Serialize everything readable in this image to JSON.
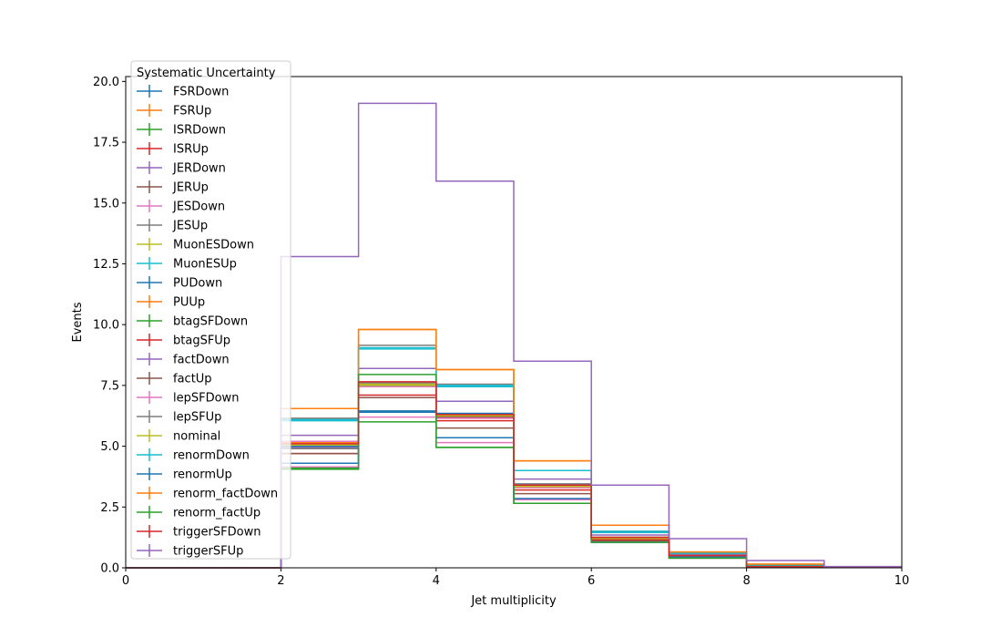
{
  "chart_data": {
    "type": "step",
    "xlabel": "Jet multiplicity",
    "ylabel": "Events",
    "xlim": [
      0,
      10
    ],
    "ylim": [
      0,
      20.2
    ],
    "x_ticks": [
      "0",
      "2",
      "4",
      "6",
      "8",
      "10"
    ],
    "y_ticks": [
      "0.0",
      "2.5",
      "5.0",
      "7.5",
      "10.0",
      "12.5",
      "15.0",
      "17.5",
      "20.0"
    ],
    "grid": false,
    "bin_edges": [
      0,
      1,
      2,
      3,
      4,
      5,
      6,
      7,
      8,
      9,
      10
    ],
    "legend": {
      "title": "Systematic Uncertainty",
      "placement": "upper-left"
    },
    "series": [
      {
        "name": "FSRDown",
        "color": "#1f77b4",
        "values": [
          0,
          0,
          4.3,
          6.45,
          5.35,
          3.45,
          1.2,
          0.45,
          0.05,
          0.02
        ]
      },
      {
        "name": "FSRUp",
        "color": "#ff7f0e",
        "values": [
          0,
          0,
          5.15,
          7.6,
          6.15,
          3.3,
          1.25,
          0.55,
          0.05,
          0.02
        ]
      },
      {
        "name": "ISRDown",
        "color": "#2ca02c",
        "values": [
          0,
          0,
          4.95,
          7.5,
          6.3,
          3.35,
          1.2,
          0.5,
          0.05,
          0.02
        ]
      },
      {
        "name": "ISRUp",
        "color": "#d62728",
        "values": [
          0,
          0,
          5.05,
          7.55,
          6.2,
          3.35,
          1.25,
          0.5,
          0.05,
          0.02
        ]
      },
      {
        "name": "JERDown",
        "color": "#9467bd",
        "values": [
          0,
          0,
          4.95,
          7.6,
          6.25,
          3.4,
          1.25,
          0.5,
          0.05,
          0.02
        ]
      },
      {
        "name": "JERUp",
        "color": "#8c564b",
        "values": [
          0,
          0,
          5.0,
          7.55,
          6.2,
          3.35,
          1.2,
          0.5,
          0.05,
          0.02
        ]
      },
      {
        "name": "JESDown",
        "color": "#e377c2",
        "values": [
          0,
          0,
          5.2,
          7.45,
          6.15,
          3.3,
          1.2,
          0.5,
          0.05,
          0.02
        ]
      },
      {
        "name": "JESUp",
        "color": "#7f7f7f",
        "values": [
          0,
          0,
          4.9,
          7.6,
          6.3,
          3.45,
          1.25,
          0.5,
          0.05,
          0.02
        ]
      },
      {
        "name": "MuonESDown",
        "color": "#bcbd22",
        "values": [
          0,
          0,
          5.0,
          7.55,
          6.25,
          3.35,
          1.2,
          0.5,
          0.05,
          0.02
        ]
      },
      {
        "name": "MuonESUp",
        "color": "#17becf",
        "values": [
          0,
          0,
          6.1,
          9.0,
          7.45,
          4.0,
          1.45,
          0.6,
          0.1,
          0.02
        ]
      },
      {
        "name": "PUDown",
        "color": "#1f77b4",
        "values": [
          0,
          0,
          5.0,
          7.5,
          6.35,
          4.0,
          1.5,
          0.55,
          0.05,
          0.02
        ]
      },
      {
        "name": "PUUp",
        "color": "#ff7f0e",
        "values": [
          0,
          0,
          6.55,
          9.8,
          8.15,
          4.4,
          1.75,
          0.65,
          0.15,
          0.02
        ]
      },
      {
        "name": "btagSFDown",
        "color": "#2ca02c",
        "values": [
          0,
          0,
          4.05,
          6.0,
          4.95,
          2.65,
          1.05,
          0.4,
          0.05,
          0.02
        ]
      },
      {
        "name": "btagSFUp",
        "color": "#d62728",
        "values": [
          0,
          0,
          4.7,
          7.1,
          6.05,
          3.2,
          1.15,
          0.45,
          0.05,
          0.02
        ]
      },
      {
        "name": "factDown",
        "color": "#9467bd",
        "values": [
          0,
          0,
          5.45,
          8.2,
          6.85,
          3.65,
          1.35,
          0.55,
          0.05,
          0.02
        ]
      },
      {
        "name": "factUp",
        "color": "#8c564b",
        "values": [
          0,
          0,
          4.7,
          7.0,
          5.75,
          3.05,
          1.1,
          0.45,
          0.05,
          0.02
        ]
      },
      {
        "name": "lepSFDown",
        "color": "#e377c2",
        "values": [
          0,
          0,
          4.15,
          6.2,
          5.15,
          2.8,
          1.05,
          0.4,
          0.05,
          0.02
        ]
      },
      {
        "name": "lepSFUp",
        "color": "#7f7f7f",
        "values": [
          0,
          0,
          6.15,
          9.15,
          7.55,
          4.0,
          1.5,
          0.6,
          0.1,
          0.02
        ]
      },
      {
        "name": "nominal",
        "color": "#bcbd22",
        "values": [
          0,
          0,
          5.05,
          7.5,
          6.25,
          3.35,
          1.25,
          0.5,
          0.05,
          0.02
        ]
      },
      {
        "name": "renormDown",
        "color": "#17becf",
        "values": [
          0,
          0,
          6.05,
          9.05,
          7.5,
          4.0,
          1.5,
          0.6,
          0.1,
          0.02
        ]
      },
      {
        "name": "renormUp",
        "color": "#1f77b4",
        "values": [
          0,
          0,
          4.3,
          6.4,
          5.35,
          2.85,
          1.05,
          0.45,
          0.05,
          0.02
        ]
      },
      {
        "name": "renorm_factDown",
        "color": "#ff7f0e",
        "values": [
          0,
          0,
          6.55,
          9.8,
          8.15,
          4.4,
          1.75,
          0.65,
          0.15,
          0.02
        ]
      },
      {
        "name": "renorm_factUp",
        "color": "#2ca02c",
        "values": [
          0,
          0,
          4.1,
          7.95,
          4.95,
          2.65,
          1.05,
          0.4,
          0.05,
          0.02
        ]
      },
      {
        "name": "triggerSFDown",
        "color": "#d62728",
        "values": [
          0,
          0,
          5.1,
          7.65,
          6.3,
          3.4,
          1.25,
          0.5,
          0.05,
          0.02
        ]
      },
      {
        "name": "triggerSFUp",
        "color": "#9467bd",
        "values": [
          0,
          0,
          12.8,
          19.1,
          15.9,
          8.5,
          3.4,
          1.2,
          0.3,
          0.05
        ]
      }
    ]
  }
}
